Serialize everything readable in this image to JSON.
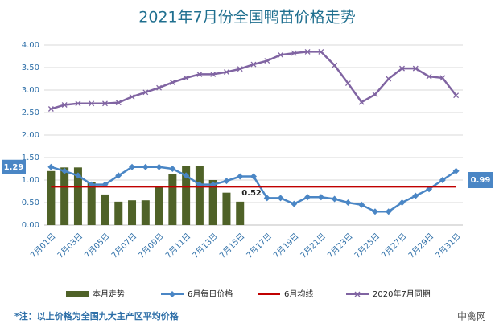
{
  "chart_data": {
    "type": "combo",
    "title": "2021年7月份全国鸭苗价格走势",
    "categories": [
      "7月01日",
      null,
      "7月03日",
      null,
      "7月05日",
      null,
      "7月07日",
      null,
      "7月09日",
      null,
      "7月11日",
      null,
      "7月13日",
      null,
      "7月15日",
      null,
      "7月17日",
      null,
      "7月19日",
      null,
      "7月21日",
      null,
      "7月23日",
      null,
      "7月25日",
      null,
      "7月27日",
      null,
      "7月29日",
      null,
      "7月31日"
    ],
    "ylim": [
      0,
      4
    ],
    "yticks": [
      {
        "value": 0,
        "label": "0.00"
      },
      {
        "value": 0.5,
        "label": "0.50"
      },
      {
        "value": 1,
        "label": "1.00"
      },
      {
        "value": 1.5,
        "label": "1.50"
      },
      {
        "value": 2,
        "label": "2.00"
      },
      {
        "value": 2.5,
        "label": "2.50"
      },
      {
        "value": 3,
        "label": "3.00"
      },
      {
        "value": 3.5,
        "label": "3.50"
      },
      {
        "value": 4,
        "label": "4.00"
      }
    ],
    "grid": true,
    "series": [
      {
        "name": "本月走势",
        "kind": "bar",
        "color": "#4f6228",
        "values": [
          1.2,
          1.28,
          1.28,
          0.95,
          0.68,
          0.52,
          0.55,
          0.55,
          0.85,
          1.14,
          1.32,
          1.32,
          1.0,
          0.72,
          0.52,
          null,
          null,
          null,
          null,
          null,
          null,
          null,
          null,
          null,
          null,
          null,
          null,
          null,
          null,
          null,
          null
        ],
        "value_labels": {
          "14": "0.52"
        }
      },
      {
        "name": "6月每日价格",
        "kind": "line",
        "marker": "diamond",
        "color": "#4a86c5",
        "values": [
          1.29,
          1.2,
          1.1,
          0.9,
          0.9,
          1.1,
          1.29,
          1.29,
          1.29,
          1.25,
          1.1,
          0.9,
          0.9,
          0.98,
          1.08,
          1.08,
          0.6,
          0.6,
          0.47,
          0.62,
          0.62,
          0.58,
          0.5,
          0.45,
          0.3,
          0.3,
          0.5,
          0.65,
          0.8,
          1.0,
          1.2
        ],
        "value_labels": {
          "0": "1.29"
        }
      },
      {
        "name": "6月均线",
        "kind": "line",
        "marker": "none",
        "color": "#c00000",
        "values": [
          0.85,
          0.85,
          0.85,
          0.85,
          0.85,
          0.85,
          0.85,
          0.85,
          0.85,
          0.85,
          0.85,
          0.85,
          0.85,
          0.85,
          0.85,
          0.85,
          0.85,
          0.85,
          0.85,
          0.85,
          0.85,
          0.85,
          0.85,
          0.85,
          0.85,
          0.85,
          0.85,
          0.85,
          0.85,
          0.85,
          0.85
        ]
      },
      {
        "name": "2020年7月同期",
        "kind": "line",
        "marker": "x",
        "color": "#8064a2",
        "values": [
          2.58,
          2.67,
          2.7,
          2.7,
          2.7,
          2.72,
          2.85,
          2.95,
          3.05,
          3.17,
          3.27,
          3.35,
          3.35,
          3.4,
          3.47,
          3.57,
          3.65,
          3.78,
          3.82,
          3.85,
          3.85,
          3.55,
          3.15,
          2.73,
          2.9,
          3.25,
          3.48,
          3.48,
          3.3,
          3.27,
          2.88
        ]
      }
    ],
    "annotations": [
      "0.99"
    ],
    "footnote": "*注：以上价格为全国九大主产区平均价格",
    "watermark": "中禽网"
  }
}
